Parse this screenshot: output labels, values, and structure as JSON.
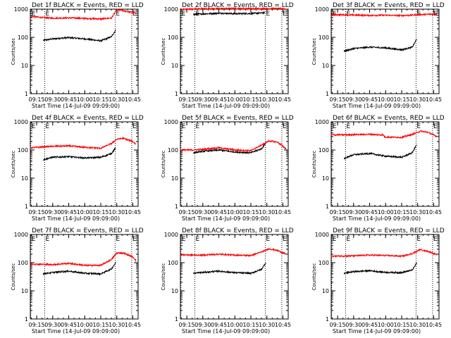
{
  "chart_data": {
    "type": "line",
    "layout": "3x3 grid",
    "x_tick_labels": [
      "09:15",
      "09:30",
      "09:45",
      "10:00",
      "10:15",
      "10:30",
      "10:45"
    ],
    "x_range": [
      "09:09:00",
      "10:50:00"
    ],
    "y_scale": "log",
    "y_range": [
      1,
      1000
    ],
    "y_tick_labels": [
      "1",
      "10",
      "100",
      "1000"
    ],
    "ylabel": "Counts/sec",
    "xlabel": "Start Time (14-Jul-09 09:09:00)",
    "marker_label": "E",
    "marker_times": [
      "09:09:30",
      "09:22:30",
      "10:28:30",
      "10:44:00"
    ],
    "series_colors": {
      "events": "#000000",
      "lld": "#ff0000"
    },
    "grid": false,
    "legend": "none (series named in panel titles)",
    "panels": [
      {
        "title": "Det 1f BLACK = Events, RED = LLD",
        "series": [
          {
            "color": "black",
            "x": [
              "09:21",
              "09:30",
              "09:45",
              "10:00",
              "10:15",
              "10:25",
              "10:29"
            ],
            "y": [
              78,
              88,
              98,
              88,
              75,
              105,
              180
            ]
          },
          {
            "color": "red",
            "x": [
              "09:09",
              "09:20",
              "09:30",
              "09:45",
              "10:00",
              "10:15",
              "10:25",
              "10:30",
              "10:36",
              "10:45",
              "10:48"
            ],
            "y": [
              560,
              500,
              480,
              490,
              470,
              450,
              480,
              960,
              880,
              760,
              700
            ]
          }
        ]
      },
      {
        "title": "Det 2f BLACK = Events, RED = LLD",
        "series": [
          {
            "color": "black",
            "x": [
              "09:21",
              "09:30",
              "09:45",
              "10:00",
              "10:15",
              "10:25",
              "10:28"
            ],
            "y": [
              650,
              680,
              720,
              690,
              700,
              730,
              760
            ]
          },
          {
            "color": "red",
            "x": [
              "09:09",
              "09:20",
              "09:30",
              "09:45",
              "10:00",
              "10:15",
              "10:30",
              "10:45",
              "10:48"
            ],
            "y": [
              1000,
              1010,
              1030,
              1040,
              1060,
              1030,
              1050,
              1040,
              1020
            ]
          }
        ]
      },
      {
        "title": "Det 3f BLACK = Events, RED = LLD",
        "series": [
          {
            "color": "black",
            "x": [
              "09:21",
              "09:30",
              "09:45",
              "10:00",
              "10:15",
              "10:25",
              "10:29"
            ],
            "y": [
              32,
              40,
              45,
              42,
              36,
              45,
              85
            ]
          },
          {
            "color": "red",
            "x": [
              "09:09",
              "09:30",
              "09:45",
              "10:00",
              "10:15",
              "10:30",
              "10:45",
              "10:48"
            ],
            "y": [
              640,
              620,
              600,
              610,
              590,
              630,
              670,
              680
            ]
          }
        ]
      },
      {
        "title": "Det 4f BLACK = Events, RED = LLD",
        "series": [
          {
            "color": "black",
            "x": [
              "09:21",
              "09:30",
              "09:45",
              "10:00",
              "10:15",
              "10:25",
              "10:29"
            ],
            "y": [
              45,
              55,
              58,
              52,
              55,
              75,
              120
            ]
          },
          {
            "color": "red",
            "x": [
              "09:09",
              "09:30",
              "09:45",
              "10:00",
              "10:15",
              "10:25",
              "10:30",
              "10:36",
              "10:45",
              "10:48"
            ],
            "y": [
              120,
              135,
              140,
              125,
              115,
              170,
              240,
              260,
              200,
              160
            ]
          }
        ]
      },
      {
        "title": "Det 5f BLACK = Events, RED = LLD",
        "series": [
          {
            "color": "black",
            "x": [
              "09:21",
              "09:30",
              "09:45",
              "10:00",
              "10:15",
              "10:25",
              "10:29"
            ],
            "y": [
              80,
              90,
              100,
              85,
              80,
              110,
              180
            ]
          },
          {
            "color": "red",
            "x": [
              "09:09",
              "09:20",
              "09:30",
              "09:45",
              "10:00",
              "10:15",
              "10:25",
              "10:32",
              "10:40",
              "10:48"
            ],
            "y": [
              100,
              100,
              105,
              120,
              100,
              95,
              150,
              210,
              190,
              110
            ]
          }
        ]
      },
      {
        "title": "Det 6f BLACK = Events, RED = LLD",
        "series": [
          {
            "color": "black",
            "x": [
              "09:21",
              "09:30",
              "09:45",
              "10:00",
              "10:15",
              "10:25",
              "10:29"
            ],
            "y": [
              50,
              68,
              75,
              60,
              55,
              80,
              155
            ]
          },
          {
            "color": "red",
            "x": [
              "09:09",
              "09:30",
              "09:45",
              "09:58",
              "09:59",
              "10:15",
              "10:25",
              "10:33",
              "10:40",
              "10:48"
            ],
            "y": [
              340,
              350,
              360,
              340,
              290,
              280,
              360,
              470,
              420,
              300
            ]
          }
        ]
      },
      {
        "title": "Det 7f BLACK = Events, RED = LLD",
        "series": [
          {
            "color": "black",
            "x": [
              "09:21",
              "09:30",
              "09:45",
              "10:00",
              "10:15",
              "10:25",
              "10:29"
            ],
            "y": [
              40,
              45,
              50,
              42,
              40,
              60,
              100
            ]
          },
          {
            "color": "red",
            "x": [
              "09:09",
              "09:30",
              "09:45",
              "10:00",
              "10:15",
              "10:25",
              "10:30",
              "10:36",
              "10:45",
              "10:48"
            ],
            "y": [
              90,
              85,
              95,
              80,
              80,
              130,
              220,
              220,
              160,
              120
            ]
          }
        ]
      },
      {
        "title": "Det 8f BLACK = Events, RED = LLD",
        "series": [
          {
            "color": "black",
            "x": [
              "09:21",
              "09:30",
              "09:45",
              "10:00",
              "10:15",
              "10:25",
              "10:29"
            ],
            "y": [
              42,
              45,
              50,
              44,
              42,
              58,
              100
            ]
          },
          {
            "color": "red",
            "x": [
              "09:09",
              "09:30",
              "09:45",
              "10:00",
              "10:15",
              "10:25",
              "10:32",
              "10:40",
              "10:48"
            ],
            "y": [
              190,
              185,
              200,
              185,
              180,
              240,
              310,
              270,
              200
            ]
          }
        ]
      },
      {
        "title": "Det 9f BLACK = Events, RED = LLD",
        "series": [
          {
            "color": "black",
            "x": [
              "09:21",
              "09:30",
              "09:45",
              "10:00",
              "10:15",
              "10:25",
              "10:29"
            ],
            "y": [
              42,
              48,
              52,
              45,
              44,
              55,
              95
            ]
          },
          {
            "color": "red",
            "x": [
              "09:09",
              "09:30",
              "09:45",
              "10:00",
              "10:15",
              "10:25",
              "10:32",
              "10:40",
              "10:48"
            ],
            "y": [
              170,
              175,
              185,
              180,
              170,
              210,
              290,
              250,
              190
            ]
          }
        ]
      }
    ]
  }
}
